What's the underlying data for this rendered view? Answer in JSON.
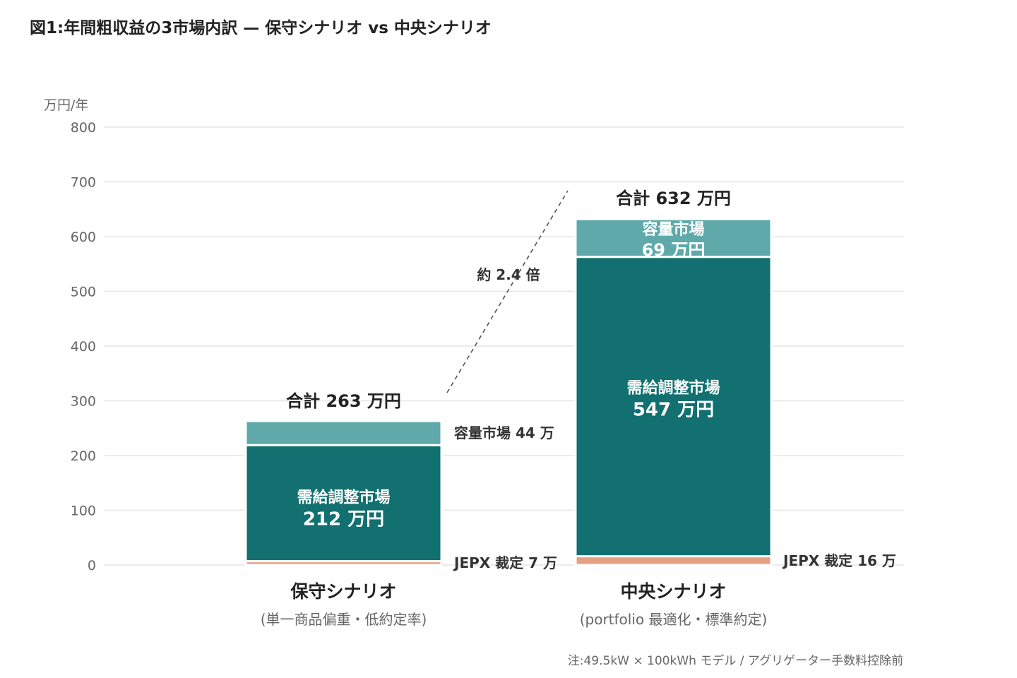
{
  "title": "図1:年間粗収益の3市場内訳 — 保守シナリオ vs 中央シナリオ",
  "note": "注:49.5kW × 100kWh モデル / アグリゲーター手数料控除前",
  "colors": {
    "capacity": "#5fa9ab",
    "balancing": "#127070",
    "jepx": "#e3a181",
    "grid": "#e6e6e6",
    "axis_text": "#666666"
  },
  "chart_data": {
    "type": "bar",
    "stacked": true,
    "ylabel": "万円/年",
    "ylim": [
      0,
      800
    ],
    "yticks": [
      0,
      100,
      200,
      300,
      400,
      500,
      600,
      700,
      800
    ],
    "grid": true,
    "categories": [
      "保守シナリオ",
      "中央シナリオ"
    ],
    "category_subtitles": [
      "(単一商品偏重・低約定率)",
      "(portfolio 最適化・標準約定)"
    ],
    "series": [
      {
        "name": "JEPX 裁定",
        "values": [
          7,
          16
        ]
      },
      {
        "name": "需給調整市場",
        "values": [
          212,
          547
        ]
      },
      {
        "name": "容量市場",
        "values": [
          44,
          69
        ]
      }
    ],
    "totals": [
      263,
      632
    ],
    "total_labels": [
      "合計 263 万円",
      "合計 632 万円"
    ],
    "segment_labels": {
      "conservative": {
        "balancing_name": "需給調整市場",
        "balancing_value": "212 万円",
        "capacity_side": "容量市場 44 万",
        "jepx_side": "JEPX 裁定 7 万"
      },
      "central": {
        "capacity_name": "容量市場",
        "capacity_value": "69 万円",
        "balancing_name": "需給調整市場",
        "balancing_value": "547 万円",
        "jepx_side": "JEPX 裁定 16 万"
      }
    },
    "ratio_annotation": "約 2.4 倍"
  }
}
